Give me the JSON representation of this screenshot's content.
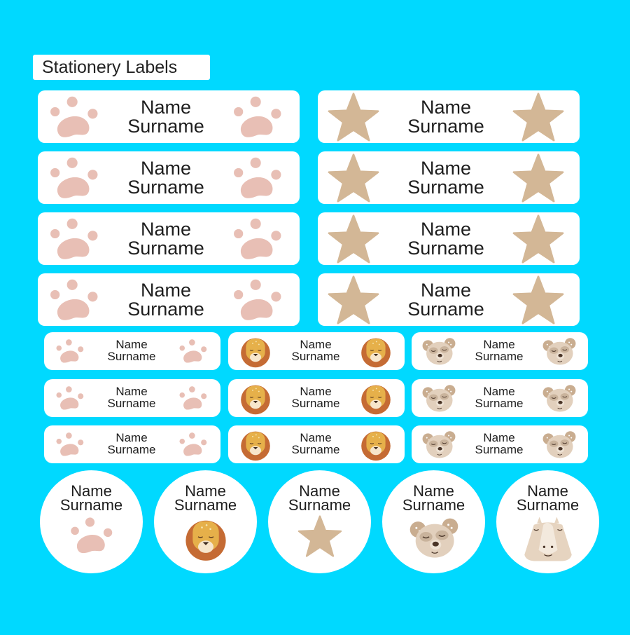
{
  "title": "Stationery Labels",
  "colors": {
    "background": "#00d9ff",
    "paw": "#e8bfb5",
    "star": "#d3b796",
    "lion_mane": "#c56b34",
    "lion_face": "#e6b04a",
    "bear": "#e2d0bd",
    "rhino": "#e6d4c0"
  },
  "large_labels": [
    {
      "name": "Name",
      "surname": "Surname",
      "icon": "paw-icon"
    },
    {
      "name": "Name",
      "surname": "Surname",
      "icon": "star-icon"
    },
    {
      "name": "Name",
      "surname": "Surname",
      "icon": "paw-icon"
    },
    {
      "name": "Name",
      "surname": "Surname",
      "icon": "star-icon"
    },
    {
      "name": "Name",
      "surname": "Surname",
      "icon": "paw-icon"
    },
    {
      "name": "Name",
      "surname": "Surname",
      "icon": "star-icon"
    },
    {
      "name": "Name",
      "surname": "Surname",
      "icon": "paw-icon"
    },
    {
      "name": "Name",
      "surname": "Surname",
      "icon": "star-icon"
    }
  ],
  "small_labels": [
    {
      "name": "Name",
      "surname": "Surname",
      "icon": "paw-icon"
    },
    {
      "name": "Name",
      "surname": "Surname",
      "icon": "lion-icon"
    },
    {
      "name": "Name",
      "surname": "Surname",
      "icon": "bear-icon"
    },
    {
      "name": "Name",
      "surname": "Surname",
      "icon": "paw-icon"
    },
    {
      "name": "Name",
      "surname": "Surname",
      "icon": "lion-icon"
    },
    {
      "name": "Name",
      "surname": "Surname",
      "icon": "bear-icon"
    },
    {
      "name": "Name",
      "surname": "Surname",
      "icon": "paw-icon"
    },
    {
      "name": "Name",
      "surname": "Surname",
      "icon": "lion-icon"
    },
    {
      "name": "Name",
      "surname": "Surname",
      "icon": "bear-icon"
    }
  ],
  "round_labels": [
    {
      "name": "Name",
      "surname": "Surname",
      "icon": "paw-icon"
    },
    {
      "name": "Name",
      "surname": "Surname",
      "icon": "lion-icon"
    },
    {
      "name": "Name",
      "surname": "Surname",
      "icon": "star-icon"
    },
    {
      "name": "Name",
      "surname": "Surname",
      "icon": "bear-icon"
    },
    {
      "name": "Name",
      "surname": "Surname",
      "icon": "rhino-icon"
    }
  ]
}
